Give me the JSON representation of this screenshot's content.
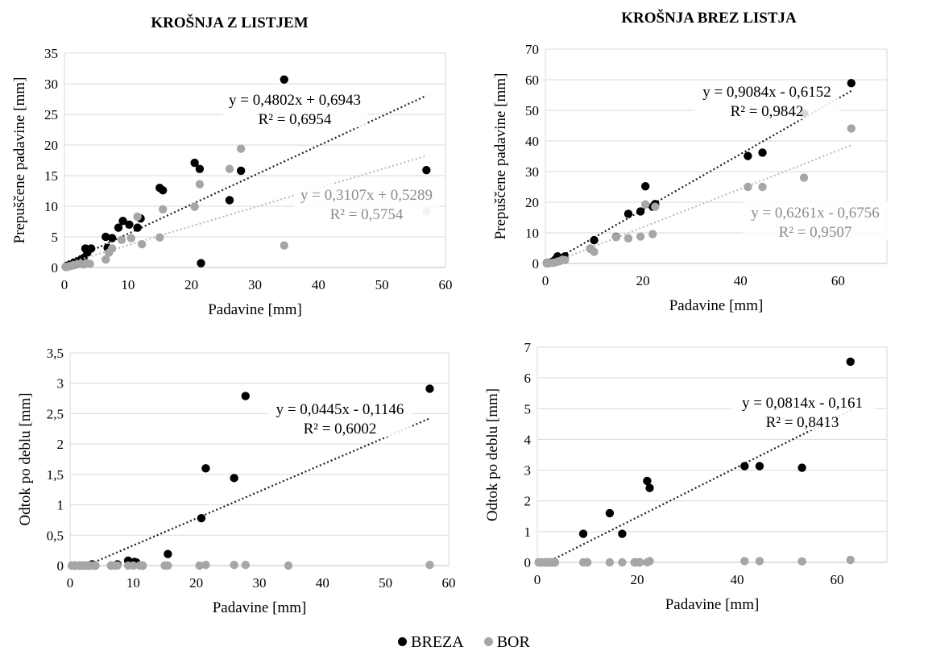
{
  "legend": {
    "breza_label": "BREZA",
    "bor_label": "BOR",
    "breza_color": "#000000",
    "bor_color": "#a6a6a6"
  },
  "chart_data": [
    {
      "type": "scatter",
      "title": "KROŠNJA Z LISTJEM",
      "xlabel": "Padavine [mm]",
      "ylabel": "Prepuščene padavine [mm]",
      "xlim": [
        0,
        60
      ],
      "ylim": [
        0,
        35
      ],
      "xticks": [
        0,
        10,
        20,
        30,
        40,
        50,
        60
      ],
      "yticks": [
        0,
        5,
        10,
        15,
        20,
        25,
        30,
        35
      ],
      "xtick_labels": [
        "0",
        "10",
        "20",
        "30",
        "40",
        "50",
        "60"
      ],
      "ytick_labels": [
        "0",
        "5",
        "10",
        "15",
        "20",
        "25",
        "30",
        "35"
      ],
      "grid": "horizontal",
      "series": [
        {
          "name": "BREZA",
          "color": "#000000",
          "points": [
            [
              0.2,
              0.1
            ],
            [
              0.5,
              0.3
            ],
            [
              0.8,
              0.4
            ],
            [
              1.2,
              0.5
            ],
            [
              1.5,
              0.8
            ],
            [
              2,
              0.9
            ],
            [
              2.5,
              1.2
            ],
            [
              3,
              1.5
            ],
            [
              3.3,
              3.1
            ],
            [
              3.6,
              2.4
            ],
            [
              4.2,
              3.1
            ],
            [
              6.5,
              5
            ],
            [
              7.5,
              4.8
            ],
            [
              6.8,
              3.2
            ],
            [
              8.5,
              6.5
            ],
            [
              9.2,
              7.6
            ],
            [
              10.2,
              7
            ],
            [
              11.5,
              6.5
            ],
            [
              12,
              8
            ],
            [
              15,
              13
            ],
            [
              15.5,
              12.6
            ],
            [
              20.5,
              17.1
            ],
            [
              21.3,
              16.1
            ],
            [
              21.5,
              0.7
            ],
            [
              26,
              11
            ],
            [
              27.8,
              15.8
            ],
            [
              34.6,
              30.7
            ],
            [
              57,
              15.9
            ]
          ],
          "trendline": {
            "slope": 0.4802,
            "intercept": 0.6943,
            "x_range": [
              0,
              57
            ]
          },
          "equation": "y = 0,4802x + 0,6943",
          "r2": "R² = 0,6954"
        },
        {
          "name": "BOR",
          "color": "#a6a6a6",
          "points": [
            [
              0.2,
              0.1
            ],
            [
              0.5,
              0.1
            ],
            [
              0.8,
              0.2
            ],
            [
              1.2,
              0.3
            ],
            [
              1.6,
              0.4
            ],
            [
              2,
              0.5
            ],
            [
              2.5,
              0.6
            ],
            [
              3,
              0.5
            ],
            [
              3.5,
              0.7
            ],
            [
              4,
              0.6
            ],
            [
              6.5,
              1.3
            ],
            [
              7,
              2.4
            ],
            [
              7.5,
              3.1
            ],
            [
              9,
              4.5
            ],
            [
              10.5,
              4.8
            ],
            [
              11.5,
              8.3
            ],
            [
              12.2,
              3.8
            ],
            [
              15,
              4.9
            ],
            [
              15.5,
              9.5
            ],
            [
              20.5,
              9.9
            ],
            [
              21.3,
              13.6
            ],
            [
              26,
              16.1
            ],
            [
              27.8,
              19.4
            ],
            [
              34.6,
              3.6
            ],
            [
              57,
              9.2
            ]
          ],
          "trendline": {
            "slope": 0.3107,
            "intercept": 0.5289,
            "x_range": [
              0,
              57
            ]
          },
          "equation": "y = 0,3107x + 0,5289",
          "r2": "R² = 0,5754"
        }
      ]
    },
    {
      "type": "scatter",
      "title": "KROŠNJA BREZ LISTJA",
      "xlabel": "Padavine [mm]",
      "ylabel": "Prepuščene padavine [mm]",
      "xlim": [
        0,
        70
      ],
      "ylim": [
        0,
        70
      ],
      "xticks": [
        0,
        20,
        40,
        60
      ],
      "yticks": [
        0,
        10,
        20,
        30,
        40,
        50,
        60,
        70
      ],
      "xtick_labels": [
        "0",
        "20",
        "40",
        "60"
      ],
      "ytick_labels": [
        "0",
        "10",
        "20",
        "30",
        "40",
        "50",
        "60",
        "70"
      ],
      "grid": "horizontal",
      "series": [
        {
          "name": "BREZA",
          "color": "#000000",
          "points": [
            [
              0.3,
              0.1
            ],
            [
              0.8,
              0.2
            ],
            [
              1.5,
              0.6
            ],
            [
              2,
              1.2
            ],
            [
              2.5,
              2.3
            ],
            [
              3,
              1.5
            ],
            [
              3.5,
              1.6
            ],
            [
              4,
              2.3
            ],
            [
              9.2,
              4.8
            ],
            [
              10,
              7.6
            ],
            [
              14.5,
              8.7
            ],
            [
              17,
              16.2
            ],
            [
              19.5,
              17
            ],
            [
              20.5,
              25.2
            ],
            [
              22,
              18.5
            ],
            [
              22.5,
              19.4
            ],
            [
              41.5,
              35.1
            ],
            [
              44.5,
              36.2
            ],
            [
              53,
              49
            ],
            [
              62.7,
              58.9
            ]
          ],
          "trendline": {
            "slope": 0.9084,
            "intercept": -0.6152,
            "x_range": [
              0,
              63
            ]
          },
          "equation": "y = 0,9084x - 0,6152",
          "r2": "R² = 0,9842"
        },
        {
          "name": "BOR",
          "color": "#a6a6a6",
          "points": [
            [
              0.3,
              0
            ],
            [
              0.8,
              0.1
            ],
            [
              1.5,
              0.2
            ],
            [
              2,
              0.3
            ],
            [
              2.5,
              0.6
            ],
            [
              3,
              0.8
            ],
            [
              3.5,
              1.2
            ],
            [
              4,
              1.1
            ],
            [
              9.2,
              4.8
            ],
            [
              10,
              3.8
            ],
            [
              14.5,
              8.6
            ],
            [
              17,
              8.2
            ],
            [
              19.5,
              8.8
            ],
            [
              20.5,
              19.3
            ],
            [
              22,
              9.6
            ],
            [
              22.5,
              18.5
            ],
            [
              41.5,
              25
            ],
            [
              44.5,
              25
            ],
            [
              53,
              28
            ],
            [
              62.7,
              44.1
            ]
          ],
          "trendline": {
            "slope": 0.6261,
            "intercept": -0.6756,
            "x_range": [
              0,
              63
            ]
          },
          "equation": "y = 0,6261x - 0,6756",
          "r2": "R² = 0,9507"
        }
      ]
    },
    {
      "type": "scatter",
      "title": "",
      "xlabel": "Padavine [mm]",
      "ylabel": "Odtok po deblu [mm]",
      "xlim": [
        0,
        60
      ],
      "ylim": [
        0,
        3.5
      ],
      "xticks": [
        0,
        10,
        20,
        30,
        40,
        50,
        60
      ],
      "yticks": [
        0,
        0.5,
        1,
        1.5,
        2,
        2.5,
        3,
        3.5
      ],
      "xtick_labels": [
        "0",
        "10",
        "20",
        "30",
        "40",
        "50",
        "60"
      ],
      "ytick_labels": [
        "0",
        "0,5",
        "1",
        "1,5",
        "2",
        "2,5",
        "3",
        "3,5"
      ],
      "grid": "horizontal",
      "series": [
        {
          "name": "BREZA",
          "color": "#000000",
          "points": [
            [
              0.3,
              0
            ],
            [
              0.8,
              0
            ],
            [
              1.5,
              0
            ],
            [
              2,
              0
            ],
            [
              2.5,
              0
            ],
            [
              3,
              0
            ],
            [
              3.5,
              0.02
            ],
            [
              4,
              0
            ],
            [
              6.5,
              0
            ],
            [
              7.5,
              0.02
            ],
            [
              9.2,
              0.08
            ],
            [
              10.2,
              0.06
            ],
            [
              10.5,
              0.05
            ],
            [
              11.5,
              0
            ],
            [
              15.5,
              0.19
            ],
            [
              20.8,
              0.78
            ],
            [
              21.5,
              1.6
            ],
            [
              26,
              1.44
            ],
            [
              27.8,
              2.79
            ],
            [
              57,
              2.91
            ]
          ],
          "trendline": {
            "slope": 0.0445,
            "intercept": -0.1146,
            "x_range": [
              2.6,
              57
            ]
          },
          "equation": "y = 0,0445x - 0,1146",
          "r2": "R² = 0,6002"
        },
        {
          "name": "BOR",
          "color": "#a6a6a6",
          "points": [
            [
              0.3,
              0
            ],
            [
              0.8,
              0
            ],
            [
              1.5,
              0
            ],
            [
              2,
              0
            ],
            [
              2.5,
              0
            ],
            [
              3,
              0
            ],
            [
              3.5,
              0
            ],
            [
              4,
              0
            ],
            [
              6.5,
              0
            ],
            [
              7,
              0
            ],
            [
              7.5,
              0
            ],
            [
              9.2,
              0
            ],
            [
              10,
              0
            ],
            [
              11,
              0
            ],
            [
              11.5,
              0
            ],
            [
              15,
              0
            ],
            [
              15.5,
              0
            ],
            [
              20.5,
              0
            ],
            [
              21.5,
              0.01
            ],
            [
              26,
              0.01
            ],
            [
              27.8,
              0.01
            ],
            [
              34.6,
              0
            ],
            [
              57,
              0.01
            ]
          ],
          "equation": "",
          "r2": ""
        }
      ]
    },
    {
      "type": "scatter",
      "title": "",
      "xlabel": "Padavine [mm]",
      "ylabel": "Odtok po deblu [mm]",
      "xlim": [
        0,
        70
      ],
      "ylim": [
        0,
        7
      ],
      "xticks": [
        0,
        20,
        40,
        60
      ],
      "yticks": [
        0,
        1,
        2,
        3,
        4,
        5,
        6,
        7
      ],
      "xtick_labels": [
        "0",
        "20",
        "40",
        "60"
      ],
      "ytick_labels": [
        "0",
        "1",
        "2",
        "3",
        "4",
        "5",
        "6",
        "7"
      ],
      "grid": "horizontal",
      "series": [
        {
          "name": "BREZA",
          "color": "#000000",
          "points": [
            [
              0.3,
              0
            ],
            [
              0.8,
              0
            ],
            [
              1.5,
              0
            ],
            [
              2,
              0
            ],
            [
              2.5,
              0
            ],
            [
              3,
              0
            ],
            [
              3.5,
              0
            ],
            [
              9.2,
              0.93
            ],
            [
              10,
              0
            ],
            [
              14.5,
              1.6
            ],
            [
              17,
              0.93
            ],
            [
              19.5,
              0
            ],
            [
              20.5,
              0
            ],
            [
              22,
              2.65
            ],
            [
              22.5,
              2.42
            ],
            [
              41.5,
              3.13
            ],
            [
              44.5,
              3.13
            ],
            [
              53,
              3.08
            ],
            [
              62.7,
              6.53
            ]
          ],
          "trendline": {
            "slope": 0.0814,
            "intercept": -0.161,
            "x_range": [
              2,
              63
            ]
          },
          "equation": "y = 0,0814x - 0,161",
          "r2": "R² = 0,8413"
        },
        {
          "name": "BOR",
          "color": "#a6a6a6",
          "points": [
            [
              0.3,
              0
            ],
            [
              0.8,
              0
            ],
            [
              1.5,
              0
            ],
            [
              2,
              0
            ],
            [
              2.5,
              0
            ],
            [
              3,
              0
            ],
            [
              3.5,
              0
            ],
            [
              9.2,
              0
            ],
            [
              10,
              0
            ],
            [
              14.5,
              0
            ],
            [
              17,
              0
            ],
            [
              19.5,
              0
            ],
            [
              20,
              0
            ],
            [
              20.5,
              0
            ],
            [
              22,
              0
            ],
            [
              22.5,
              0.04
            ],
            [
              41.5,
              0.04
            ],
            [
              44.5,
              0.04
            ],
            [
              53,
              0.03
            ],
            [
              62.7,
              0.08
            ]
          ],
          "equation": "",
          "r2": ""
        }
      ]
    }
  ]
}
